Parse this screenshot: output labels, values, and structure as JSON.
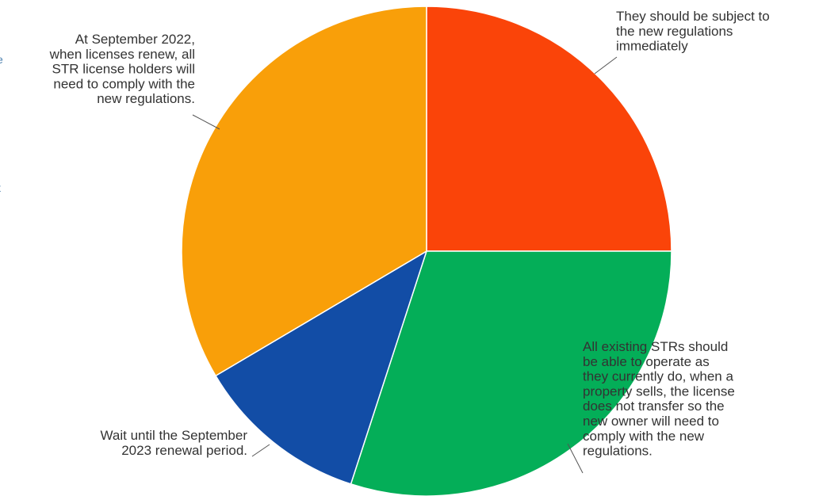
{
  "chart_data": {
    "type": "pie",
    "start_angle_deg": 0,
    "direction": "clockwise",
    "slices": [
      {
        "label": "They should be subject to the new regulations immediately",
        "label_lines": [
          "They should be subject to",
          "the new regulations",
          "immediately"
        ],
        "value": 25.0,
        "color": "#fa4409"
      },
      {
        "label": "All existing STRs should be able to operate as they currently do, when a property sells, the license does not transfer so the new owner will need to comply with the new regulations.",
        "label_lines": [
          "All existing STRs should",
          "be able to operate as",
          "they currently do, when a",
          "property sells, the license",
          "does not transfer so the",
          "new owner will need to",
          "comply with the new",
          "regulations."
        ],
        "value": 30.0,
        "color": "#04ae58"
      },
      {
        "label": "Wait until the September 2023 renewal period.",
        "label_lines": [
          "Wait until the September",
          "2023 renewal period."
        ],
        "value": 11.5,
        "color": "#124da6"
      },
      {
        "label": "At September 2022, when licenses renew, all STR license holders will need to comply with the new regulations.",
        "label_lines": [
          "At September 2022,",
          "when licenses renew, all",
          "STR license holders will",
          "need to comply with the",
          "new regulations."
        ],
        "value": 33.5,
        "color": "#f99f09"
      }
    ],
    "title": "",
    "legend": "none"
  },
  "clipped_margin_glyphs": [
    "l",
    "l",
    "e",
    "t",
    "l"
  ]
}
